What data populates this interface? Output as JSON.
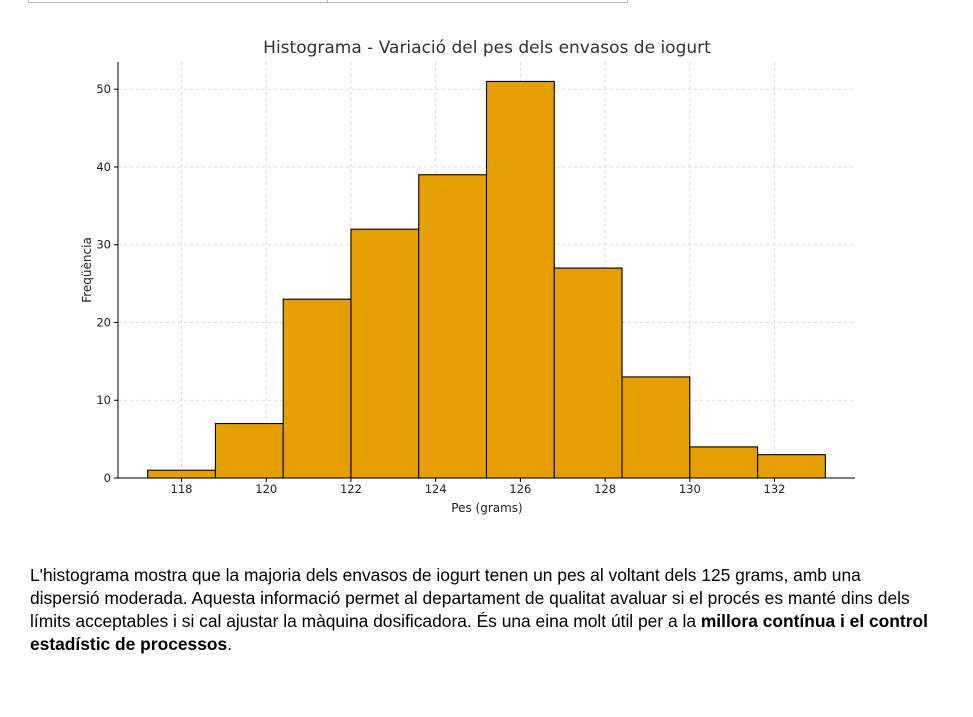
{
  "chart_data": {
    "type": "bar",
    "title": "Histograma - Variació del pes dels envasos de iogurt",
    "xlabel": "Pes (grams)",
    "ylabel": "Freqüència",
    "bin_edges": [
      117.2,
      118.8,
      120.4,
      122.0,
      123.6,
      125.2,
      126.8,
      128.4,
      130.0,
      131.6,
      133.2
    ],
    "values": [
      1,
      7,
      23,
      32,
      39,
      51,
      27,
      13,
      4,
      3
    ],
    "xlim": [
      116.5,
      133.9
    ],
    "ylim": [
      0,
      53.5
    ],
    "xticks": [
      118,
      120,
      122,
      124,
      126,
      128,
      130,
      132
    ],
    "yticks": [
      0,
      10,
      20,
      30,
      40,
      50
    ],
    "grid": true,
    "bar_color": "#E69F00",
    "edge_color": "#000000"
  },
  "caption": {
    "text_plain": "L'histograma mostra que la majoria dels envasos de iogurt tenen un pes al voltant dels 125 grams, amb una dispersió moderada. Aquesta informació permet al departament de qualitat avaluar si el procés es manté dins dels límits acceptables i si cal ajustar la màquina dosificadora. És una eina molt útil per a la ",
    "text_bold": "millora contínua i el control estadístic de processos",
    "text_end": "."
  }
}
